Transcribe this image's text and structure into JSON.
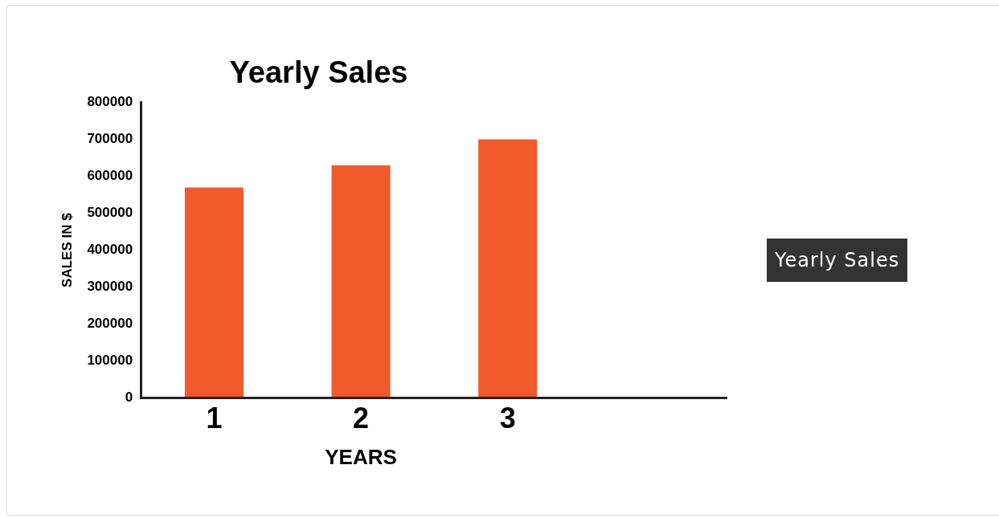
{
  "chart_data": {
    "type": "bar",
    "title": "Yearly Sales",
    "xlabel": "YEARS",
    "ylabel": "SALES IN $",
    "categories": [
      "1",
      "2",
      "3"
    ],
    "series": [
      {
        "name": "Yearly Sales",
        "color": "#f15a2b",
        "values": [
          570000,
          630000,
          700000
        ]
      }
    ],
    "ylim": [
      0,
      800000
    ],
    "yticks": [
      0,
      100000,
      200000,
      300000,
      400000,
      500000,
      600000,
      700000,
      800000
    ],
    "grid": false,
    "legend": "right"
  }
}
